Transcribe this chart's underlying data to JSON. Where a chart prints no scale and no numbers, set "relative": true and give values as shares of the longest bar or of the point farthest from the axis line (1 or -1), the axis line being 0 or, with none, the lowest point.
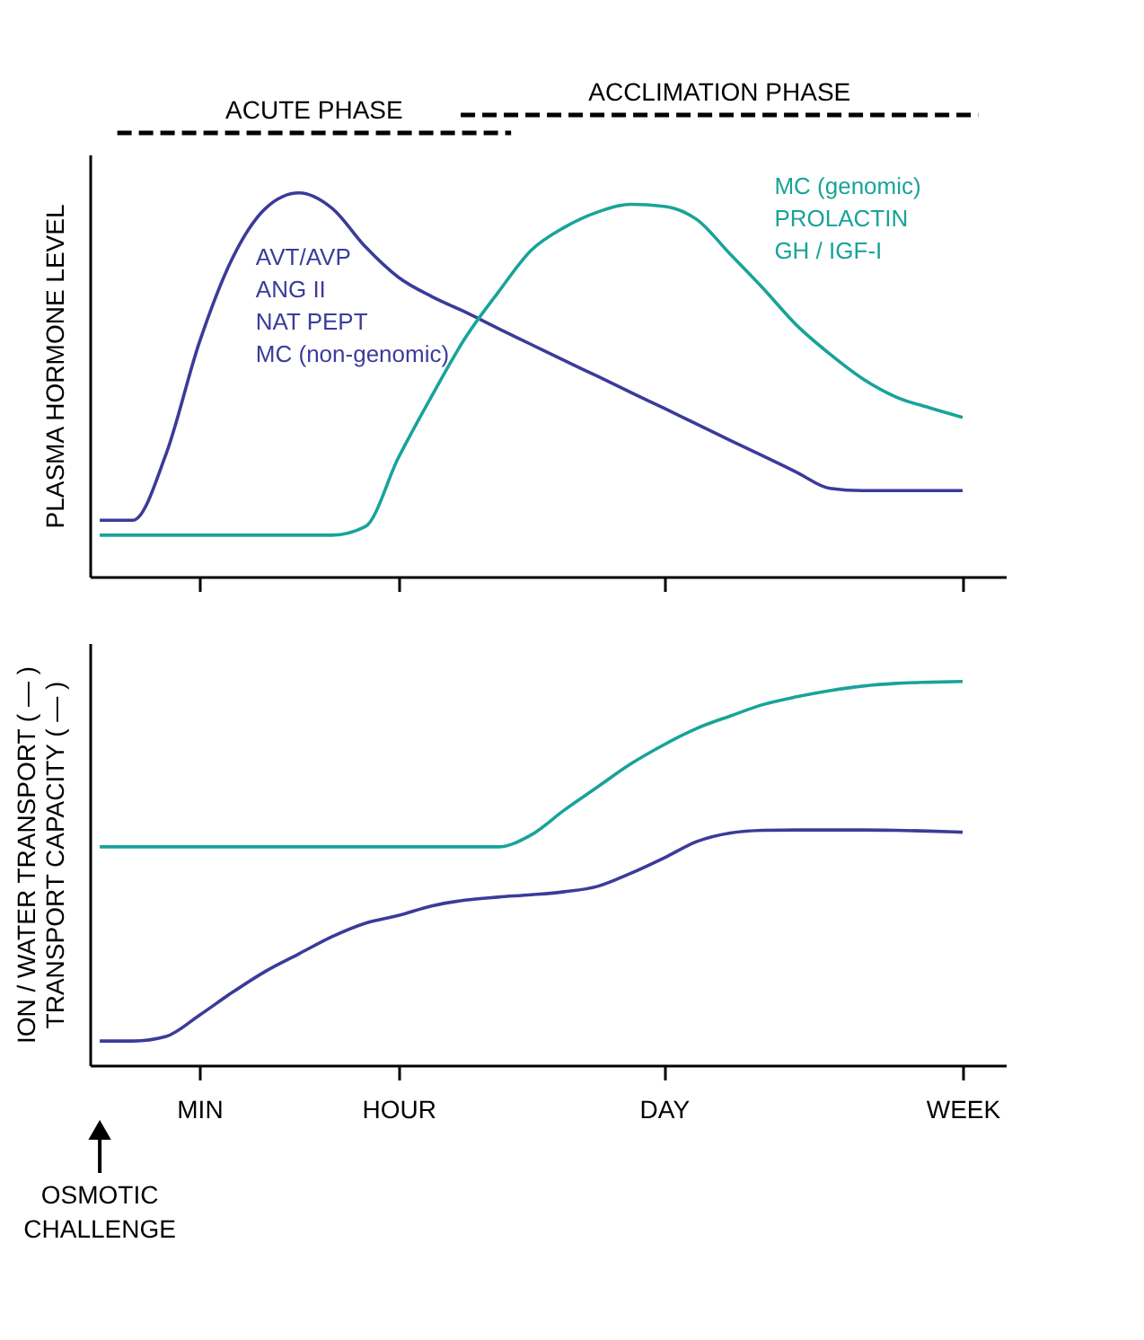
{
  "chart_data": [
    {
      "type": "line",
      "relative": true,
      "ylabel": "PLASMA HORMONE LEVEL",
      "categories": [
        null,
        null,
        null,
        null,
        null,
        null,
        null,
        null,
        null,
        null,
        null,
        null,
        null,
        null,
        null,
        null,
        null,
        null,
        null,
        null,
        null,
        null,
        null,
        null,
        null,
        null,
        null,
        null
      ],
      "tick_labels": false,
      "grid": false,
      "annotations": [
        "ACUTE PHASE",
        "ACCLIMATION PHASE"
      ],
      "series": [
        {
          "name": "AVT/AVP\nANG II\nNAT PEPT\nMC (non-genomic)",
          "color": "#3b3b9a",
          "values": [
            0.147,
            0.147,
            0.32,
            0.61,
            0.83,
            0.96,
            1.0,
            0.96,
            0.86,
            0.78,
            0.73,
            0.69,
            0.647,
            0.605,
            0.563,
            0.522,
            0.48,
            0.439,
            0.397,
            0.355,
            0.314,
            0.272,
            0.23,
            0.224,
            0.224,
            0.224,
            0.224,
            null
          ]
        },
        {
          "name": "MC (genomic)\nPROLACTIN\nGH / IGF-I",
          "color": "#18a39a",
          "values": [
            0.108,
            0.108,
            0.108,
            0.108,
            0.108,
            0.108,
            0.108,
            0.108,
            0.13,
            0.31,
            0.47,
            0.62,
            0.74,
            0.85,
            0.91,
            0.95,
            0.97,
            0.965,
            0.93,
            0.84,
            0.75,
            0.655,
            0.58,
            0.515,
            0.468,
            0.44,
            0.415,
            null
          ]
        }
      ]
    },
    {
      "type": "line",
      "relative": true,
      "ylabel": "ION / WATER TRANSPORT ( — )\nTRANSPORT CAPACITY ( — )",
      "categories": [
        null,
        null,
        null,
        "MIN",
        null,
        null,
        null,
        null,
        null,
        "HOUR",
        null,
        null,
        null,
        null,
        null,
        null,
        null,
        "DAY",
        null,
        null,
        null,
        null,
        null,
        null,
        null,
        null,
        "WEEK",
        null
      ],
      "tick_labels": "x",
      "grid": false,
      "annotations": [
        "OSMOTIC\nCHALLENGE"
      ],
      "series": [
        {
          "color": "#3b3b9a",
          "values": [
            0.063,
            0.063,
            0.075,
            0.13,
            0.19,
            0.245,
            0.29,
            0.335,
            0.37,
            0.39,
            0.415,
            0.43,
            0.438,
            0.444,
            0.452,
            0.466,
            0.5,
            0.54,
            0.583,
            0.605,
            0.612,
            0.613,
            0.613,
            0.613,
            0.612,
            0.61,
            0.607,
            null
          ]
        },
        {
          "color": "#18a39a",
          "values": [
            0.569,
            0.569,
            0.569,
            0.569,
            0.569,
            0.569,
            0.569,
            0.569,
            0.569,
            0.569,
            0.569,
            0.569,
            0.569,
            0.6,
            0.665,
            0.725,
            0.785,
            0.835,
            0.878,
            0.91,
            0.94,
            0.96,
            0.976,
            0.988,
            0.995,
            0.998,
            1.0,
            null
          ]
        }
      ]
    }
  ]
}
